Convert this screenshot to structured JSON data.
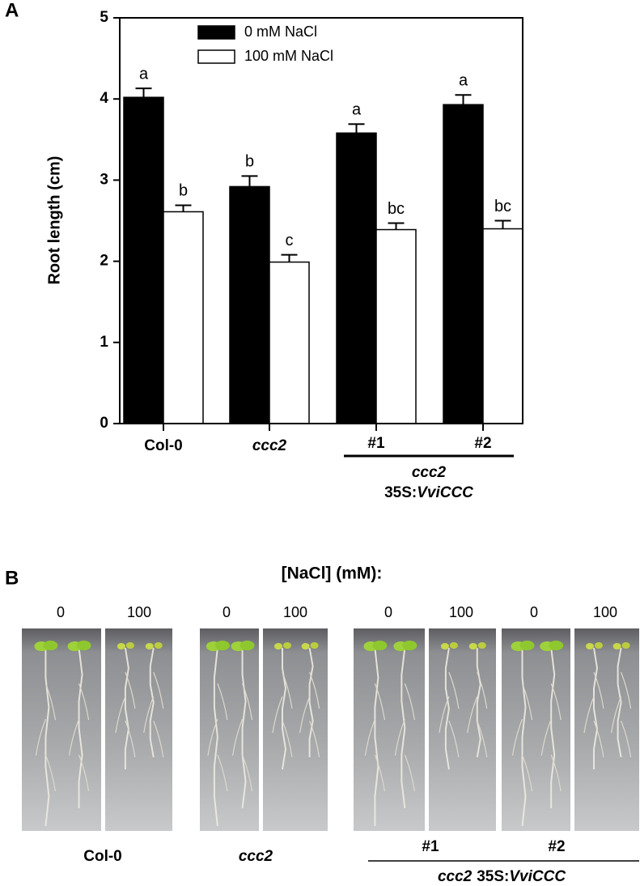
{
  "chart_data": {
    "type": "bar",
    "panel_label": "A",
    "y_label": "Root length (cm)",
    "categories": [
      "Col-0",
      "ccc2",
      "#1",
      "#2"
    ],
    "category_italic": [
      false,
      true,
      false,
      false
    ],
    "group_label": {
      "line1": "ccc2",
      "line2": [
        "35S:",
        "VviCCC"
      ]
    },
    "series": [
      {
        "name": "0 mM NaCl",
        "color": "#000000",
        "values": [
          4.02,
          2.92,
          3.58,
          3.93
        ],
        "errors": [
          0.11,
          0.13,
          0.11,
          0.12
        ],
        "labels": [
          "a",
          "b",
          "a",
          "a"
        ]
      },
      {
        "name": "100 mM NaCl",
        "color": "#ffffff",
        "values": [
          2.61,
          1.99,
          2.39,
          2.4
        ],
        "errors": [
          0.08,
          0.09,
          0.08,
          0.1
        ],
        "labels": [
          "b",
          "c",
          "bc",
          "bc"
        ]
      }
    ],
    "ylim": [
      0,
      5
    ],
    "yticks": [
      0,
      1,
      2,
      3,
      4,
      5
    ]
  },
  "panel_b": {
    "label": "B",
    "title": "[NaCl] (mM):",
    "concentrations": [
      0,
      100,
      0,
      100,
      0,
      100,
      0,
      100
    ],
    "genotypes": [
      "Col-0",
      "ccc2"
    ],
    "lines": [
      "#1",
      "#2"
    ]
  }
}
